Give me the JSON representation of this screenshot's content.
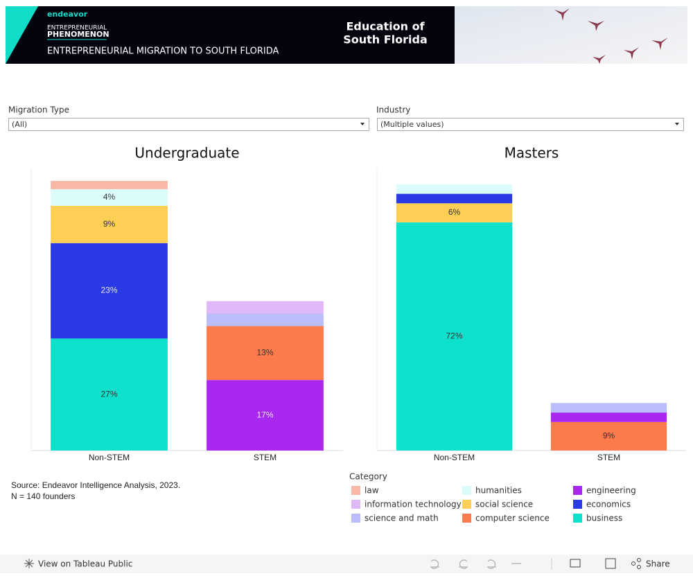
{
  "header": {
    "brand": "endeavor",
    "kicker": "ENTREPRENEURIAL",
    "program": "PHENOMENON",
    "subtitle": "ENTREPRENEURIAL MIGRATION TO SOUTH FLORIDA",
    "title_lines": [
      "Education of",
      "South Florida"
    ]
  },
  "filters": [
    {
      "label": "Migration Type",
      "value": "(All)"
    },
    {
      "label": "Industry",
      "value": "(Multiple values)"
    }
  ],
  "chart_data": [
    {
      "type": "stacked_bar",
      "title": "Undergraduate",
      "categories": [
        "Non-STEM",
        "STEM"
      ],
      "ylim": [
        0,
        68
      ],
      "series": [
        {
          "name": "business",
          "color": "#0de1cb",
          "values": [
            27,
            null
          ],
          "value_labels": [
            "27%",
            null
          ]
        },
        {
          "name": "economics",
          "color": "#2a3ae6",
          "values": [
            23,
            null
          ],
          "value_labels": [
            "23%",
            null
          ]
        },
        {
          "name": "social science",
          "color": "#fdcf55",
          "values": [
            9,
            null
          ],
          "value_labels": [
            "9%",
            null
          ]
        },
        {
          "name": "humanities",
          "color": "#dcfbfb",
          "values": [
            4,
            null
          ],
          "value_labels": [
            "4%",
            null
          ]
        },
        {
          "name": "law",
          "color": "#f7b9a5",
          "values": [
            2,
            null
          ],
          "value_labels": [
            null,
            null
          ]
        },
        {
          "name": "engineering",
          "color": "#a928f0",
          "values": [
            null,
            17
          ],
          "value_labels": [
            null,
            "17%"
          ]
        },
        {
          "name": "computer science",
          "color": "#fd7a4d",
          "values": [
            null,
            13
          ],
          "value_labels": [
            null,
            "13%"
          ]
        },
        {
          "name": "science and math",
          "color": "#b9bdfa",
          "values": [
            null,
            3
          ],
          "value_labels": [
            null,
            null
          ]
        },
        {
          "name": "information technology",
          "color": "#e0b8f8",
          "values": [
            null,
            3
          ],
          "value_labels": [
            null,
            null
          ]
        }
      ]
    },
    {
      "type": "stacked_bar",
      "title": "Masters",
      "categories": [
        "Non-STEM",
        "STEM"
      ],
      "ylim": [
        0,
        89
      ],
      "series": [
        {
          "name": "business",
          "color": "#0de1cb",
          "values": [
            72,
            null
          ],
          "value_labels": [
            "72%",
            null
          ]
        },
        {
          "name": "social science",
          "color": "#fdcf55",
          "values": [
            6,
            null
          ],
          "value_labels": [
            "6%",
            null
          ]
        },
        {
          "name": "economics",
          "color": "#2a3ae6",
          "values": [
            3,
            null
          ],
          "value_labels": [
            null,
            null
          ]
        },
        {
          "name": "humanities",
          "color": "#dcfbfb",
          "values": [
            3,
            null
          ],
          "value_labels": [
            null,
            null
          ]
        },
        {
          "name": "computer science",
          "color": "#fd7a4d",
          "values": [
            null,
            9
          ],
          "value_labels": [
            null,
            "9%"
          ]
        },
        {
          "name": "engineering",
          "color": "#a928f0",
          "values": [
            null,
            3
          ],
          "value_labels": [
            null,
            null
          ]
        },
        {
          "name": "science and math",
          "color": "#b9bdfa",
          "values": [
            null,
            3
          ],
          "value_labels": [
            null,
            null
          ]
        }
      ]
    }
  ],
  "legend": {
    "title": "Category",
    "items": [
      {
        "name": "law",
        "color": "#f7b9a5"
      },
      {
        "name": "humanities",
        "color": "#dcfbfb"
      },
      {
        "name": "engineering",
        "color": "#a928f0"
      },
      {
        "name": "information technology",
        "color": "#e0b8f8"
      },
      {
        "name": "social science",
        "color": "#fdcf55"
      },
      {
        "name": "economics",
        "color": "#2a3ae6"
      },
      {
        "name": "science and math",
        "color": "#b9bdfa"
      },
      {
        "name": "computer science",
        "color": "#fd7a4d"
      },
      {
        "name": "business",
        "color": "#0de1cb"
      }
    ]
  },
  "source": [
    "Source: Endeavor Intelligence Analysis, 2023.",
    "N = 140 founders"
  ],
  "toolbar": {
    "view": "View on Tableau Public",
    "share": "Share"
  }
}
